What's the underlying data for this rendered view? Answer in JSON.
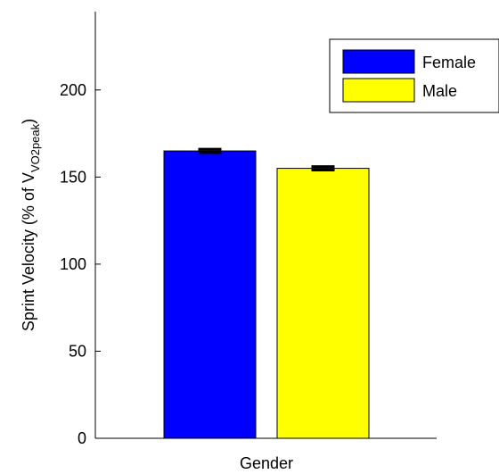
{
  "chart_data": {
    "type": "bar",
    "xlabel": "Gender",
    "ylabel": {
      "prefix": "Sprint Velocity (% of V",
      "subscript": "VO2peak",
      "suffix": ")"
    },
    "ylim": [
      0,
      245
    ],
    "yticks": [
      0,
      50,
      100,
      150,
      200
    ],
    "grid": false,
    "legend_position": "top-right",
    "series": [
      {
        "name": "Female",
        "value": 165,
        "error": 1,
        "color": "#0000ff"
      },
      {
        "name": "Male",
        "value": 155,
        "error": 1,
        "color": "#ffff00"
      }
    ]
  }
}
